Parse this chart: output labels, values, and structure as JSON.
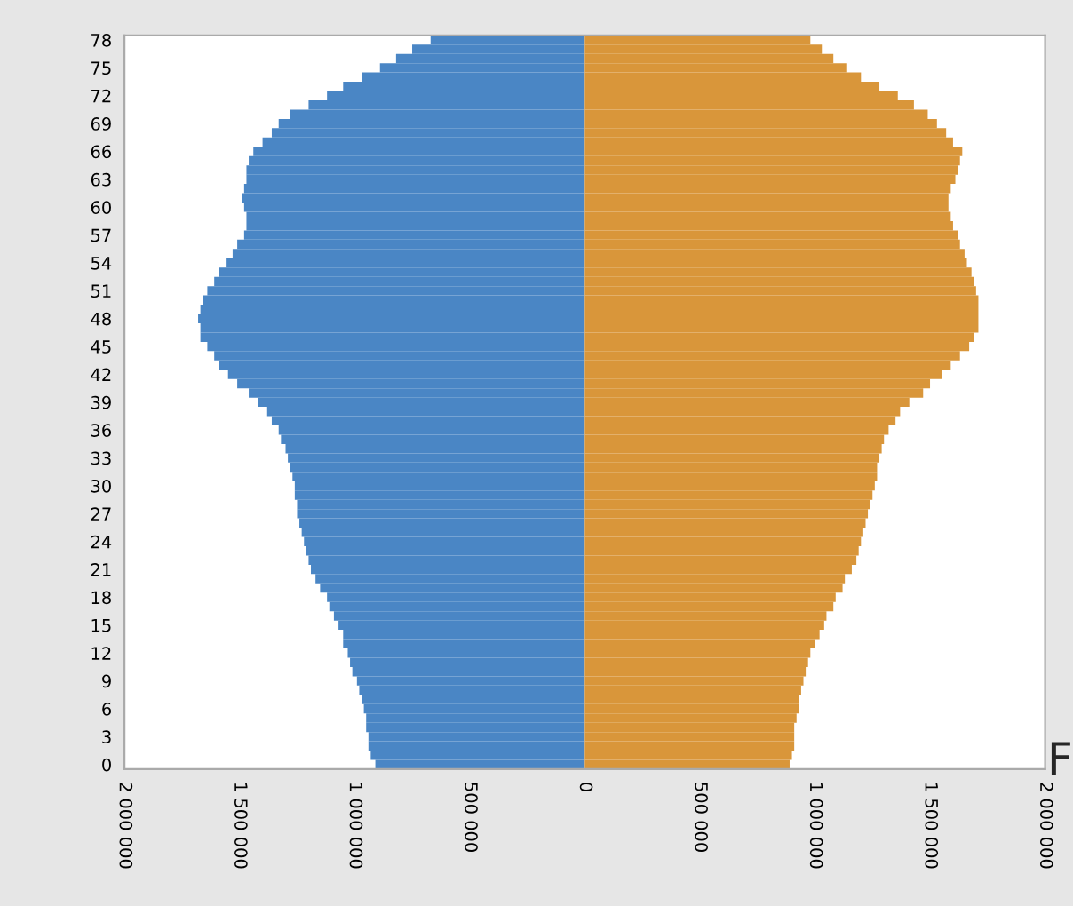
{
  "chart_data": {
    "type": "bar",
    "orientation": "horizontal",
    "stacked": true,
    "categories": [
      "78",
      null,
      null,
      "75",
      null,
      null,
      "72",
      null,
      null,
      "69",
      null,
      null,
      "66",
      null,
      null,
      "63",
      null,
      null,
      "60",
      null,
      null,
      "57",
      null,
      null,
      "54",
      null,
      null,
      "51",
      null,
      null,
      "48",
      null,
      null,
      "45",
      null,
      null,
      "42",
      null,
      null,
      "39",
      null,
      null,
      "36",
      null,
      null,
      "33",
      null,
      null,
      "30",
      null,
      null,
      "27",
      null,
      null,
      "24",
      null,
      null,
      "21",
      null,
      null,
      "18",
      null,
      null,
      "15",
      null,
      null,
      "12",
      null,
      null,
      "9",
      null,
      null,
      "6",
      null,
      null,
      "3",
      null,
      null,
      "0"
    ],
    "series": [
      {
        "color": "#4a86c5",
        "values": [
          -670000,
          -750000,
          -820000,
          -890000,
          -970000,
          -1050000,
          -1120000,
          -1200000,
          -1280000,
          -1330000,
          -1360000,
          -1400000,
          -1440000,
          -1460000,
          -1470000,
          -1470000,
          -1480000,
          -1490000,
          -1480000,
          -1470000,
          -1470000,
          -1480000,
          -1510000,
          -1530000,
          -1560000,
          -1590000,
          -1610000,
          -1640000,
          -1660000,
          -1670000,
          -1680000,
          -1670000,
          -1670000,
          -1640000,
          -1610000,
          -1590000,
          -1550000,
          -1510000,
          -1460000,
          -1420000,
          -1380000,
          -1360000,
          -1330000,
          -1320000,
          -1300000,
          -1290000,
          -1280000,
          -1270000,
          -1260000,
          -1260000,
          -1250000,
          -1250000,
          -1240000,
          -1230000,
          -1220000,
          -1210000,
          -1200000,
          -1190000,
          -1170000,
          -1150000,
          -1120000,
          -1110000,
          -1090000,
          -1070000,
          -1050000,
          -1050000,
          -1030000,
          -1020000,
          -1010000,
          -990000,
          -980000,
          -970000,
          -960000,
          -950000,
          -950000,
          -940000,
          -940000,
          -930000,
          -910000
        ]
      },
      {
        "color": "#d9963a",
        "values": [
          980000,
          1030000,
          1080000,
          1140000,
          1200000,
          1280000,
          1360000,
          1430000,
          1490000,
          1530000,
          1570000,
          1600000,
          1640000,
          1630000,
          1620000,
          1610000,
          1590000,
          1580000,
          1580000,
          1590000,
          1600000,
          1620000,
          1630000,
          1650000,
          1660000,
          1680000,
          1690000,
          1700000,
          1710000,
          1710000,
          1710000,
          1710000,
          1690000,
          1670000,
          1630000,
          1590000,
          1550000,
          1500000,
          1470000,
          1410000,
          1370000,
          1350000,
          1320000,
          1300000,
          1290000,
          1280000,
          1270000,
          1270000,
          1260000,
          1250000,
          1240000,
          1230000,
          1220000,
          1210000,
          1200000,
          1190000,
          1180000,
          1160000,
          1130000,
          1120000,
          1090000,
          1080000,
          1050000,
          1040000,
          1020000,
          1000000,
          980000,
          970000,
          960000,
          950000,
          940000,
          930000,
          930000,
          920000,
          910000,
          910000,
          910000,
          900000,
          890000
        ]
      }
    ],
    "xlim": [
      -2000000,
      2000000
    ],
    "xticks": [
      {
        "value": -2000000,
        "label": "2 000 000"
      },
      {
        "value": -1500000,
        "label": "1 500 000"
      },
      {
        "value": -1000000,
        "label": "1 000 000"
      },
      {
        "value": -500000,
        "label": "500 000"
      },
      0,
      {
        "value": 500000,
        "label": "500 000"
      },
      {
        "value": 1000000,
        "label": "1 000 000"
      },
      {
        "value": 1500000,
        "label": "1 500 000"
      },
      {
        "value": 2000000,
        "label": "2 000 000"
      }
    ],
    "annotations": [
      "F"
    ]
  }
}
